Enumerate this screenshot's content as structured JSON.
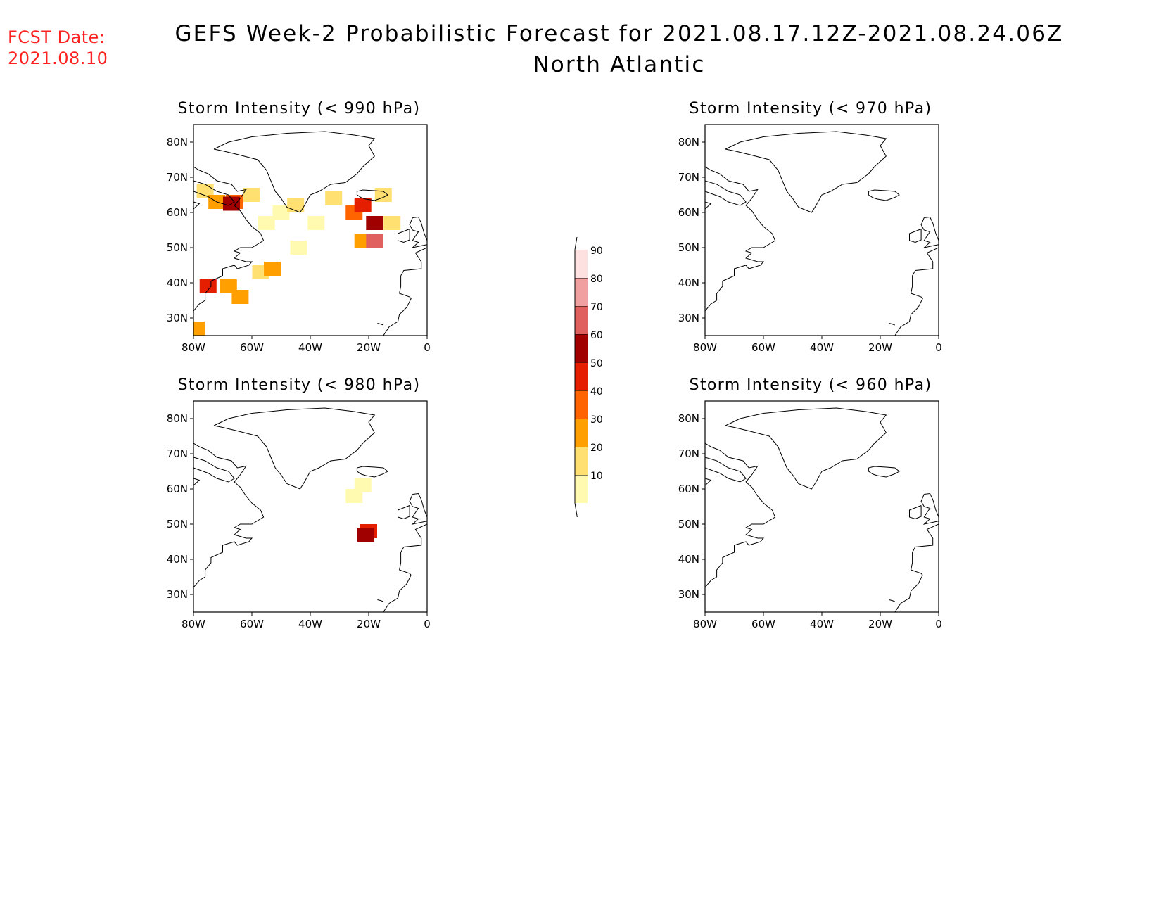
{
  "fcst": {
    "label": "FCST Date:",
    "date": "2021.08.10",
    "color": "#ff2020"
  },
  "title": "GEFS Week-2 Probabilistic Forecast for 2021.08.17.12Z-2021.08.24.06Z",
  "subtitle": "North Atlantic",
  "panels": [
    {
      "id": "p990",
      "title": "Storm Intensity (< 990 hPa)"
    },
    {
      "id": "p970",
      "title": "Storm Intensity (< 970 hPa)"
    },
    {
      "id": "p980",
      "title": "Storm Intensity (< 980 hPa)"
    },
    {
      "id": "p960",
      "title": "Storm Intensity (< 960 hPa)"
    }
  ],
  "axes": {
    "lon_ticks": [
      "80W",
      "60W",
      "40W",
      "20W",
      "0"
    ],
    "lat_ticks": [
      "80N",
      "70N",
      "60N",
      "50N",
      "40N",
      "30N"
    ],
    "lon_range": [
      -80,
      0
    ],
    "lat_range": [
      25,
      85
    ]
  },
  "colorbar": {
    "levels": [
      10,
      20,
      30,
      40,
      50,
      60,
      70,
      80,
      90
    ],
    "level_labels": [
      "10",
      "20",
      "30",
      "40",
      "50",
      "60",
      "70",
      "80",
      "90"
    ],
    "colors": [
      "#fffab0",
      "#ffe070",
      "#ffa000",
      "#ff6400",
      "#e61e00",
      "#a00000",
      "#e06060",
      "#f0a0a0",
      "#fde0e0"
    ]
  },
  "probability_blobs": {
    "p990": [
      {
        "lon": -66,
        "lat": 63,
        "prob": 40
      },
      {
        "lon": -67,
        "lat": 62.5,
        "prob": 60
      },
      {
        "lon": -72,
        "lat": 63,
        "prob": 30
      },
      {
        "lon": -76,
        "lat": 66,
        "prob": 20
      },
      {
        "lon": -60,
        "lat": 65,
        "prob": 20
      },
      {
        "lon": -55,
        "lat": 57,
        "prob": 10
      },
      {
        "lon": -50,
        "lat": 60,
        "prob": 10
      },
      {
        "lon": -45,
        "lat": 62,
        "prob": 20
      },
      {
        "lon": -38,
        "lat": 57,
        "prob": 10
      },
      {
        "lon": -32,
        "lat": 64,
        "prob": 20
      },
      {
        "lon": -25,
        "lat": 60,
        "prob": 40
      },
      {
        "lon": -22,
        "lat": 62,
        "prob": 50
      },
      {
        "lon": -18,
        "lat": 57,
        "prob": 60
      },
      {
        "lon": -22,
        "lat": 52,
        "prob": 30
      },
      {
        "lon": -18,
        "lat": 52,
        "prob": 70
      },
      {
        "lon": -15,
        "lat": 65,
        "prob": 20
      },
      {
        "lon": -12,
        "lat": 57,
        "prob": 20
      },
      {
        "lon": -75,
        "lat": 39,
        "prob": 50
      },
      {
        "lon": -68,
        "lat": 39,
        "prob": 30
      },
      {
        "lon": -64,
        "lat": 36,
        "prob": 30
      },
      {
        "lon": -57,
        "lat": 43,
        "prob": 20
      },
      {
        "lon": -53,
        "lat": 44,
        "prob": 30
      },
      {
        "lon": -44,
        "lat": 50,
        "prob": 10
      },
      {
        "lon": -79,
        "lat": 27,
        "prob": 30
      }
    ],
    "p980": [
      {
        "lon": -22,
        "lat": 61,
        "prob": 10
      },
      {
        "lon": -25,
        "lat": 58,
        "prob": 10
      },
      {
        "lon": -20,
        "lat": 48,
        "prob": 50
      },
      {
        "lon": -21,
        "lat": 47,
        "prob": 60
      }
    ],
    "p970": [],
    "p960": []
  }
}
